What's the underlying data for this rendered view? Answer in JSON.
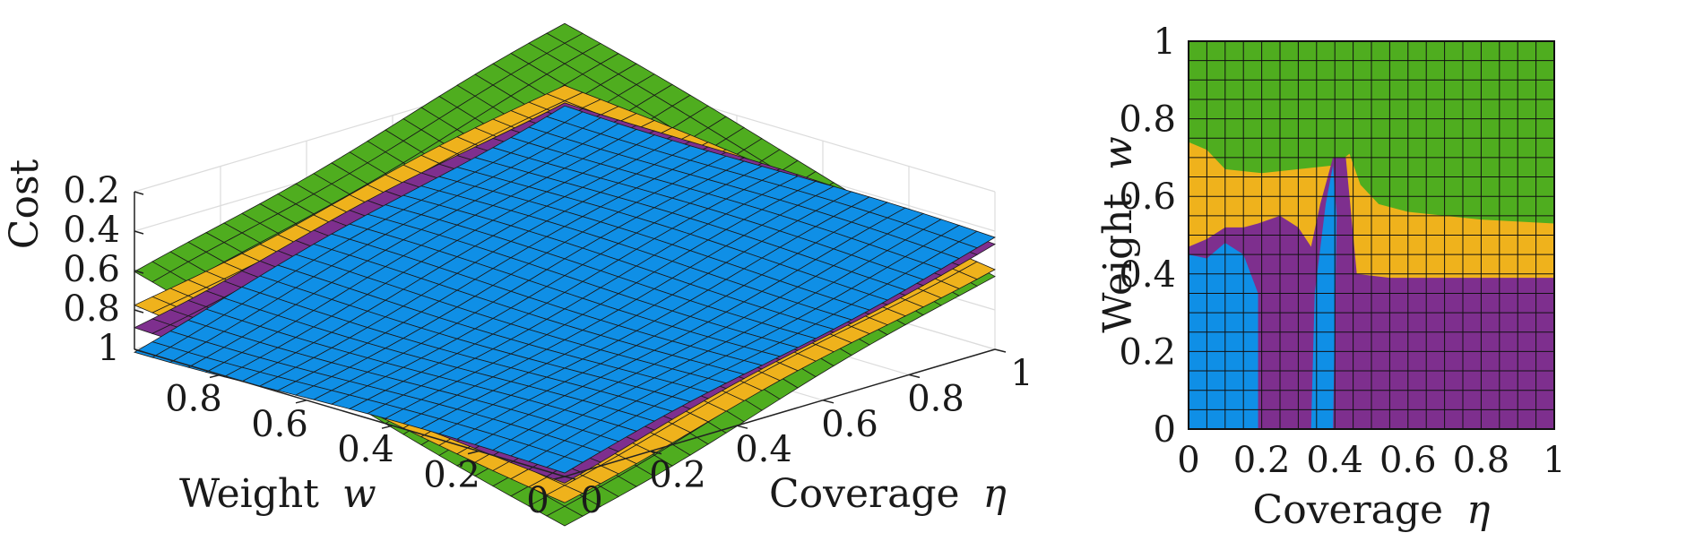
{
  "chart_data": [
    {
      "type": "surface",
      "title": "",
      "xlabel": "Coverage",
      "xlabel_symbol": "η",
      "ylabel": "Weight",
      "ylabel_symbol": "w",
      "zlabel": "Cost",
      "xlim": [
        0,
        1
      ],
      "ylim": [
        0,
        1
      ],
      "zlim": [
        1,
        0.2
      ],
      "z_reversed": true,
      "x_ticks": [
        "0",
        "0.2",
        "0.4",
        "0.6",
        "0.8",
        "1"
      ],
      "y_ticks": [
        "0",
        "0.2",
        "0.4",
        "0.6",
        "0.8"
      ],
      "z_ticks": [
        "0.2",
        "0.4",
        "0.6",
        "0.8",
        "1"
      ],
      "grid": true,
      "series": [
        {
          "color": "#4fad1f",
          "corner_cost": {
            "eta0_w0": 1.25,
            "eta1_w0": 0.62,
            "eta0_w1": 0.62,
            "eta1_w1": 0.0
          }
        },
        {
          "color": "#efb21c",
          "corner_cost": {
            "eta0_w0": 1.12,
            "eta1_w0": 0.58,
            "eta0_w1": 0.78,
            "eta1_w1": 0.3
          }
        },
        {
          "color": "#7e2f8e",
          "corner_cost": {
            "eta0_w0": 1.02,
            "eta1_w0": 0.46,
            "eta0_w1": 0.88,
            "eta1_w1": 0.38
          }
        },
        {
          "color": "#0f8fe6",
          "corner_cost": {
            "eta0_w0": 0.98,
            "eta1_w0": 0.44,
            "eta0_w1": 1.0,
            "eta1_w1": 0.4
          }
        }
      ]
    },
    {
      "type": "heatmap",
      "title": "",
      "xlabel": "Coverage",
      "xlabel_symbol": "η",
      "ylabel": "Weight",
      "ylabel_symbol": "w",
      "xlim": [
        0,
        1
      ],
      "ylim": [
        0,
        1
      ],
      "x_ticks": [
        "0",
        "0.2",
        "0.4",
        "0.6",
        "0.8",
        "1"
      ],
      "y_ticks": [
        "0",
        "0.2",
        "0.4",
        "0.6",
        "0.8",
        "1"
      ],
      "grid": true,
      "grid_cells": 20,
      "regions": [
        {
          "color": "#0f8fe6",
          "eta": [
            0.0,
            0.19
          ],
          "w": [
            0.0,
            0.45
          ]
        },
        {
          "color": "#0f8fe6",
          "eta": [
            0.335,
            0.395
          ],
          "w": [
            0.0,
            0.68
          ]
        },
        {
          "color": "#7e2f8e",
          "eta": [
            0.19,
            0.335
          ],
          "w": [
            0.0,
            0.52
          ]
        },
        {
          "color": "#7e2f8e",
          "eta": [
            0.395,
            1.0
          ],
          "w": [
            0.0,
            0.39
          ]
        },
        {
          "color": "#efb21c",
          "eta": [
            0.0,
            1.0
          ],
          "w": [
            0.39,
            0.74
          ]
        },
        {
          "color": "#4fad1f",
          "eta": [
            0.0,
            1.0
          ],
          "w": [
            0.53,
            1.0
          ]
        }
      ],
      "boundaries": {
        "green_lower": [
          [
            0.0,
            0.74
          ],
          [
            0.05,
            0.72
          ],
          [
            0.1,
            0.67
          ],
          [
            0.2,
            0.66
          ],
          [
            0.3,
            0.67
          ],
          [
            0.4,
            0.68
          ],
          [
            0.44,
            0.71
          ],
          [
            0.47,
            0.63
          ],
          [
            0.52,
            0.58
          ],
          [
            0.6,
            0.56
          ],
          [
            0.8,
            0.54
          ],
          [
            1.0,
            0.53
          ]
        ],
        "purple_upper": [
          [
            0.0,
            0.47
          ],
          [
            0.05,
            0.49
          ],
          [
            0.1,
            0.52
          ],
          [
            0.15,
            0.52
          ],
          [
            0.19,
            0.53
          ],
          [
            0.25,
            0.55
          ],
          [
            0.3,
            0.52
          ],
          [
            0.335,
            0.47
          ],
          [
            0.36,
            0.58
          ],
          [
            0.395,
            0.7
          ],
          [
            0.43,
            0.7
          ],
          [
            0.46,
            0.4
          ],
          [
            0.55,
            0.39
          ],
          [
            1.0,
            0.39
          ]
        ]
      }
    }
  ]
}
